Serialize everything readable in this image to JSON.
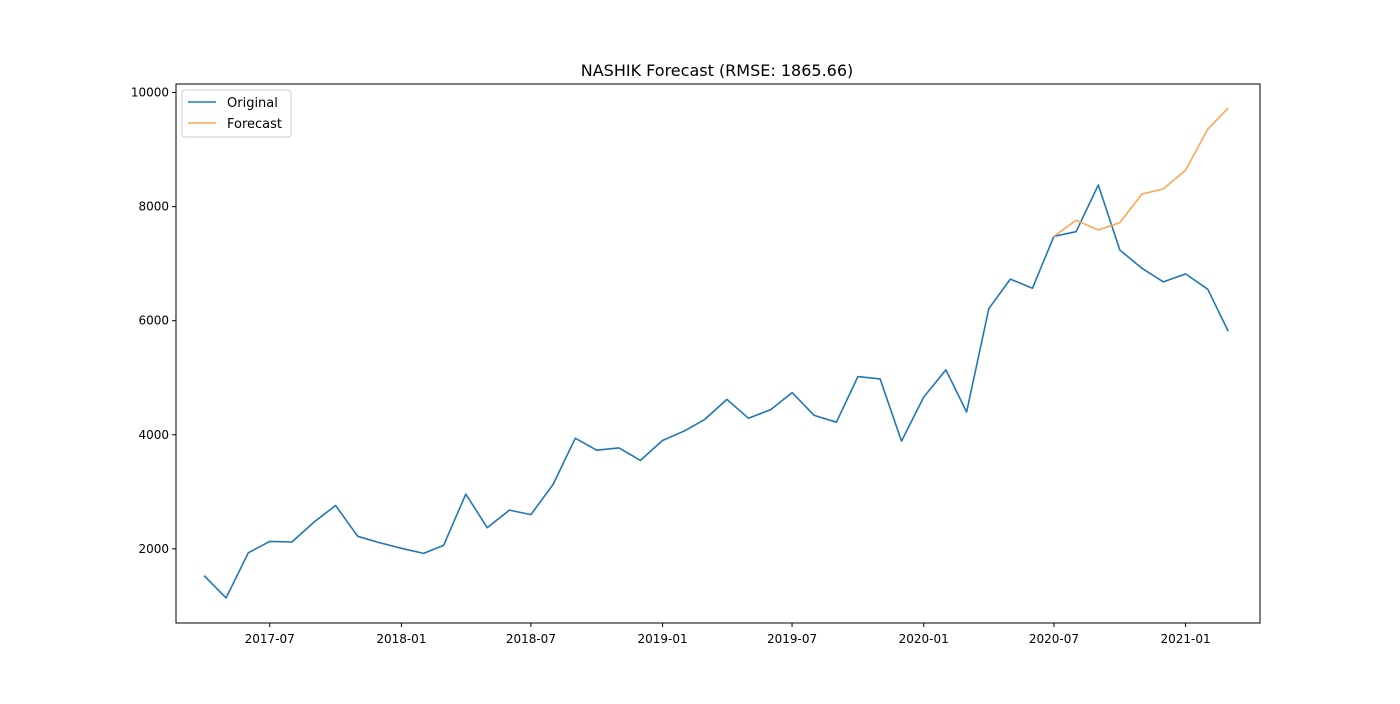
{
  "chart_data": {
    "type": "line",
    "title": "NASHIK Forecast (RMSE: 1865.66)",
    "xlabel": "",
    "ylabel": "",
    "x_axis_type": "date",
    "xlim": [
      "2017-02-20",
      "2021-04-15"
    ],
    "ylim": [
      700,
      10150
    ],
    "x_ticks": [
      "2017-07-01",
      "2018-01-01",
      "2018-07-01",
      "2019-01-01",
      "2019-07-01",
      "2020-01-01",
      "2020-07-01",
      "2021-01-01"
    ],
    "x_tick_labels": [
      "2017-07",
      "2018-01",
      "2018-07",
      "2019-01",
      "2019-07",
      "2020-01",
      "2020-07",
      "2021-01"
    ],
    "y_ticks": [
      2000,
      4000,
      6000,
      8000,
      10000
    ],
    "y_tick_labels": [
      "2000",
      "4000",
      "6000",
      "8000",
      "10000"
    ],
    "grid": false,
    "legend_position": "top-left",
    "series": [
      {
        "name": "Original",
        "color": "#1f77b4",
        "x": [
          "2017-04-01",
          "2017-05-01",
          "2017-06-01",
          "2017-07-01",
          "2017-08-01",
          "2017-09-01",
          "2017-10-01",
          "2017-11-01",
          "2017-12-01",
          "2018-01-01",
          "2018-02-01",
          "2018-03-01",
          "2018-04-01",
          "2018-05-01",
          "2018-06-01",
          "2018-07-01",
          "2018-08-01",
          "2018-09-01",
          "2018-10-01",
          "2018-11-01",
          "2018-12-01",
          "2019-01-01",
          "2019-02-01",
          "2019-03-01",
          "2019-04-01",
          "2019-05-01",
          "2019-06-01",
          "2019-07-01",
          "2019-08-01",
          "2019-09-01",
          "2019-10-01",
          "2019-11-01",
          "2019-12-01",
          "2020-01-01",
          "2020-02-01",
          "2020-03-01",
          "2020-04-01",
          "2020-05-01",
          "2020-06-01",
          "2020-07-01",
          "2020-08-01",
          "2020-09-01",
          "2020-10-01",
          "2020-11-01",
          "2020-12-01",
          "2021-01-01",
          "2021-02-01",
          "2021-03-01"
        ],
        "values": [
          1520,
          1140,
          1930,
          2130,
          2120,
          2470,
          2760,
          2220,
          2110,
          2010,
          1920,
          2060,
          2960,
          2370,
          2680,
          2600,
          3130,
          3940,
          3730,
          3770,
          3550,
          3900,
          4070,
          4270,
          4620,
          4290,
          4440,
          4740,
          4340,
          4220,
          5020,
          4980,
          3890,
          4660,
          5140,
          4400,
          6210,
          6730,
          6570,
          7480,
          7560,
          8380,
          7240,
          6920,
          6680,
          6820,
          6550,
          5830
        ]
      },
      {
        "name": "Forecast",
        "color": "#ffa652",
        "x": [
          "2020-07-01",
          "2020-08-01",
          "2020-09-01",
          "2020-10-01",
          "2020-11-01",
          "2020-12-01",
          "2021-01-01",
          "2021-02-01",
          "2021-03-01"
        ],
        "values": [
          7480,
          7760,
          7590,
          7720,
          8220,
          8310,
          8640,
          9360,
          9720
        ]
      }
    ]
  }
}
